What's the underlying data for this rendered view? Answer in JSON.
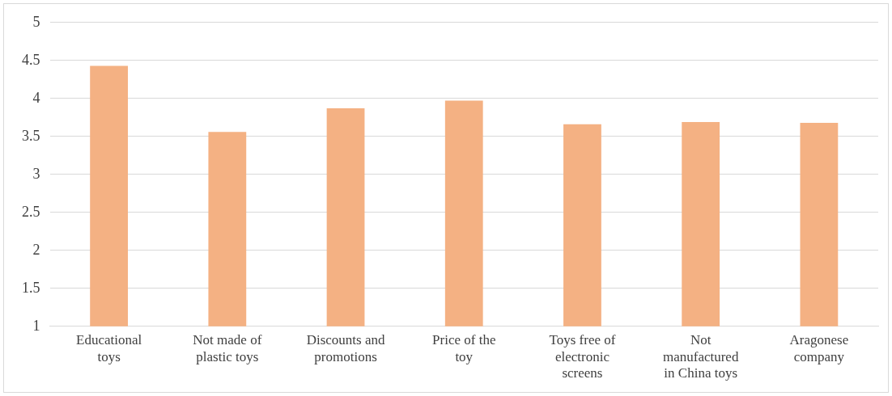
{
  "chart_data": {
    "type": "bar",
    "categories": [
      "Educational toys",
      "Not made of plastic toys",
      "Discounts and promotions",
      "Price of the toy",
      "Toys free of electronic screens",
      "Not manufactured in China toys",
      "Aragonese company"
    ],
    "values": [
      4.43,
      3.56,
      3.87,
      3.97,
      3.66,
      3.69,
      3.68
    ],
    "color": "#f4b183",
    "ylim": [
      1,
      5
    ],
    "yticks": [
      1,
      1.5,
      2,
      2.5,
      3,
      3.5,
      4,
      4.5,
      5
    ],
    "grid": "y"
  }
}
